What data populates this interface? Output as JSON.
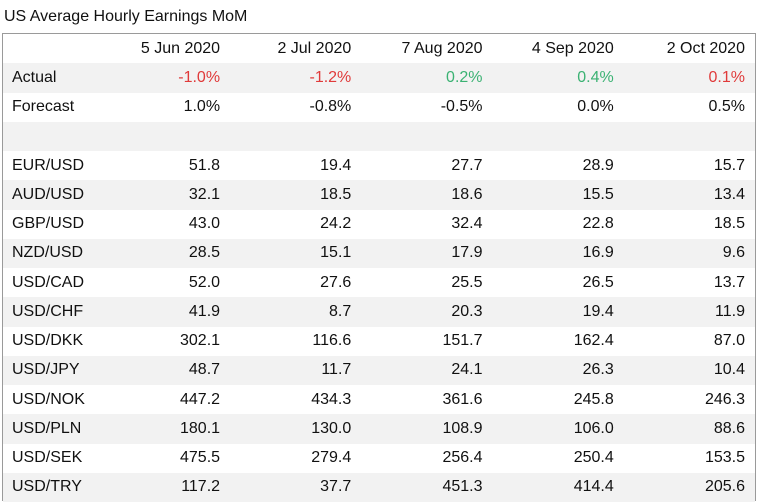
{
  "title": "US Average Hourly Earnings MoM",
  "colors": {
    "negative": "#e03a3a",
    "positive": "#3bb273",
    "stripe": "#f2f2f2"
  },
  "columns": [
    "",
    "5 Jun 2020",
    "2 Jul 2020",
    "7 Aug 2020",
    "4 Sep 2020",
    "2 Oct 2020"
  ],
  "actual": {
    "label": "Actual",
    "values": [
      "-1.0%",
      "-1.2%",
      "0.2%",
      "0.4%",
      "0.1%"
    ],
    "signs": [
      "neg",
      "neg",
      "pos",
      "pos",
      "neg"
    ]
  },
  "forecast": {
    "label": "Forecast",
    "values": [
      "1.0%",
      "-0.8%",
      "-0.5%",
      "0.0%",
      "0.5%"
    ]
  },
  "pairs": [
    {
      "label": "EUR/USD",
      "values": [
        "51.8",
        "19.4",
        "27.7",
        "28.9",
        "15.7"
      ]
    },
    {
      "label": "AUD/USD",
      "values": [
        "32.1",
        "18.5",
        "18.6",
        "15.5",
        "13.4"
      ]
    },
    {
      "label": "GBP/USD",
      "values": [
        "43.0",
        "24.2",
        "32.4",
        "22.8",
        "18.5"
      ]
    },
    {
      "label": "NZD/USD",
      "values": [
        "28.5",
        "15.1",
        "17.9",
        "16.9",
        "9.6"
      ]
    },
    {
      "label": "USD/CAD",
      "values": [
        "52.0",
        "27.6",
        "25.5",
        "26.5",
        "13.7"
      ]
    },
    {
      "label": "USD/CHF",
      "values": [
        "41.9",
        "8.7",
        "20.3",
        "19.4",
        "11.9"
      ]
    },
    {
      "label": "USD/DKK",
      "values": [
        "302.1",
        "116.6",
        "151.7",
        "162.4",
        "87.0"
      ]
    },
    {
      "label": "USD/JPY",
      "values": [
        "48.7",
        "11.7",
        "24.1",
        "26.3",
        "10.4"
      ]
    },
    {
      "label": "USD/NOK",
      "values": [
        "447.2",
        "434.3",
        "361.6",
        "245.8",
        "246.3"
      ]
    },
    {
      "label": "USD/PLN",
      "values": [
        "180.1",
        "130.0",
        "108.9",
        "106.0",
        "88.6"
      ]
    },
    {
      "label": "USD/SEK",
      "values": [
        "475.5",
        "279.4",
        "256.4",
        "250.4",
        "153.5"
      ]
    },
    {
      "label": "USD/TRY",
      "values": [
        "117.2",
        "37.7",
        "451.3",
        "414.4",
        "205.6"
      ]
    }
  ]
}
